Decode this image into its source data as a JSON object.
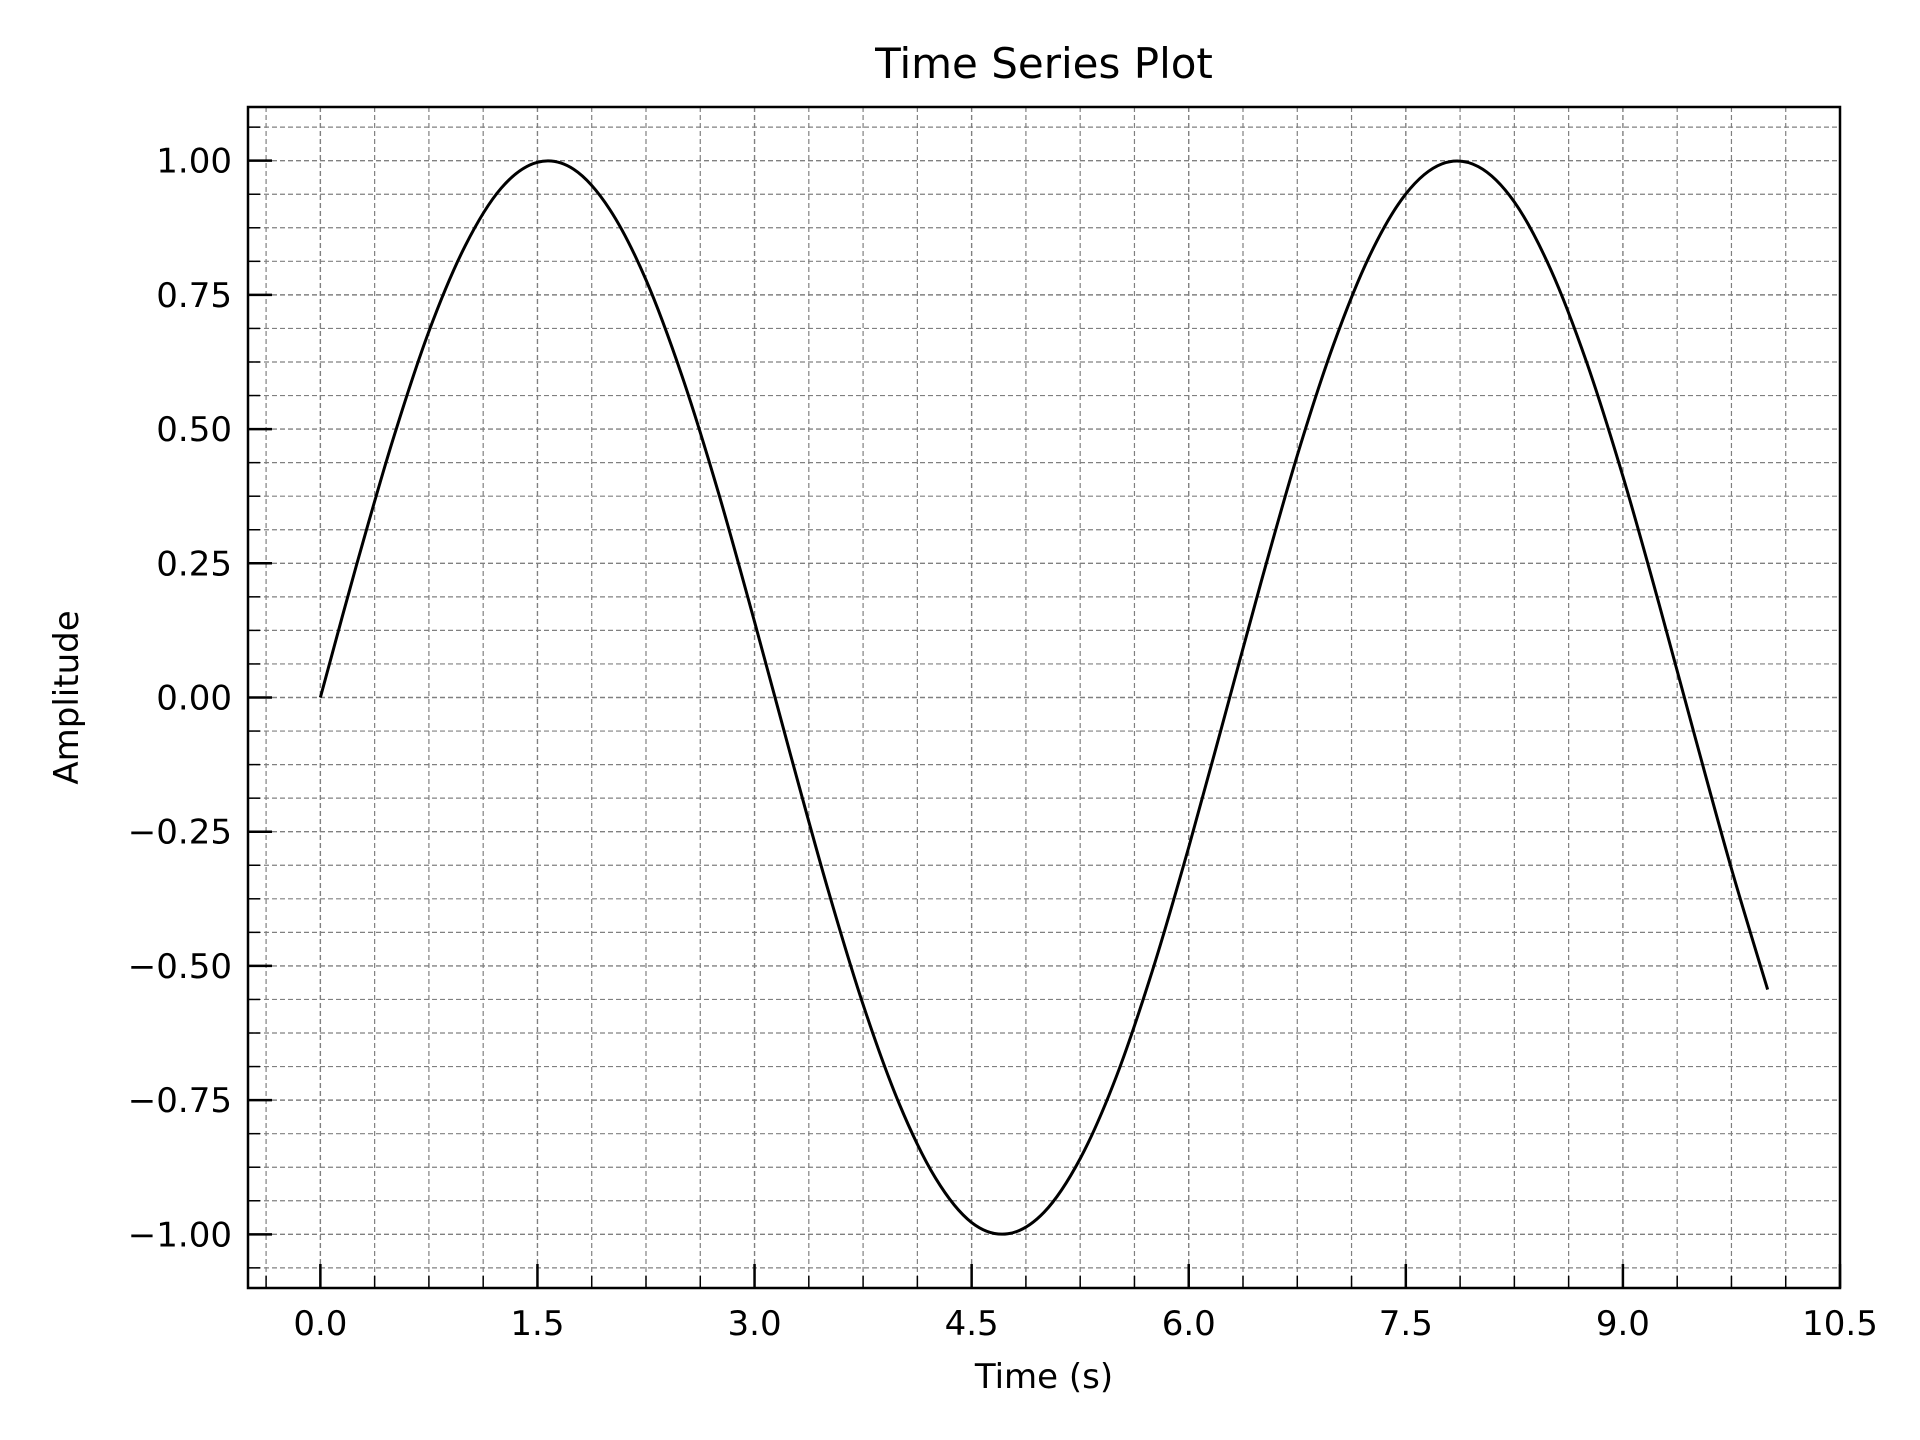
{
  "chart_data": {
    "type": "line",
    "title": "Time Series Plot",
    "xlabel": "Time (s)",
    "ylabel": "Amplitude",
    "xlim": [
      -0.5,
      10.5
    ],
    "ylim": [
      -1.1,
      1.1
    ],
    "x_ticks": [
      0.0,
      1.5,
      3.0,
      4.5,
      6.0,
      7.5,
      9.0,
      10.5
    ],
    "x_tick_labels": [
      "0.0",
      "1.5",
      "3.0",
      "4.5",
      "6.0",
      "7.5",
      "9.0",
      "10.5"
    ],
    "y_ticks": [
      -1.0,
      -0.75,
      -0.5,
      -0.25,
      0.0,
      0.25,
      0.5,
      0.75,
      1.0
    ],
    "y_tick_labels": [
      "−1.00",
      "−0.75",
      "−0.50",
      "−0.25",
      "0.00",
      "0.25",
      "0.50",
      "0.75",
      "1.00"
    ],
    "grid": true,
    "grid_style": "dashed",
    "colors": {
      "line": "#000000",
      "grid": "#808080",
      "axes": "#000000",
      "background": "#ffffff"
    },
    "series": [
      {
        "x": [
          0.0,
          0.25,
          0.5,
          0.75,
          1.0,
          1.25,
          1.5,
          1.75,
          2.0,
          2.25,
          2.5,
          2.75,
          3.0,
          3.25,
          3.5,
          3.75,
          4.0,
          4.25,
          4.5,
          4.75,
          5.0,
          5.25,
          5.5,
          5.75,
          6.0,
          6.25,
          6.5,
          6.75,
          7.0,
          7.25,
          7.5,
          7.75,
          8.0,
          8.25,
          8.5,
          8.75,
          9.0,
          9.25,
          9.5,
          9.75,
          10.0
        ],
        "y": [
          0.0,
          0.247,
          0.479,
          0.682,
          0.841,
          0.949,
          0.997,
          0.984,
          0.909,
          0.778,
          0.598,
          0.382,
          0.141,
          -0.108,
          -0.351,
          -0.572,
          -0.757,
          -0.895,
          -0.978,
          -0.999,
          -0.959,
          -0.859,
          -0.706,
          -0.508,
          -0.279,
          -0.033,
          0.215,
          0.451,
          0.657,
          0.823,
          0.938,
          0.994,
          0.989,
          0.923,
          0.798,
          0.624,
          0.412,
          0.174,
          -0.075,
          -0.319,
          -0.544
        ]
      }
    ]
  }
}
